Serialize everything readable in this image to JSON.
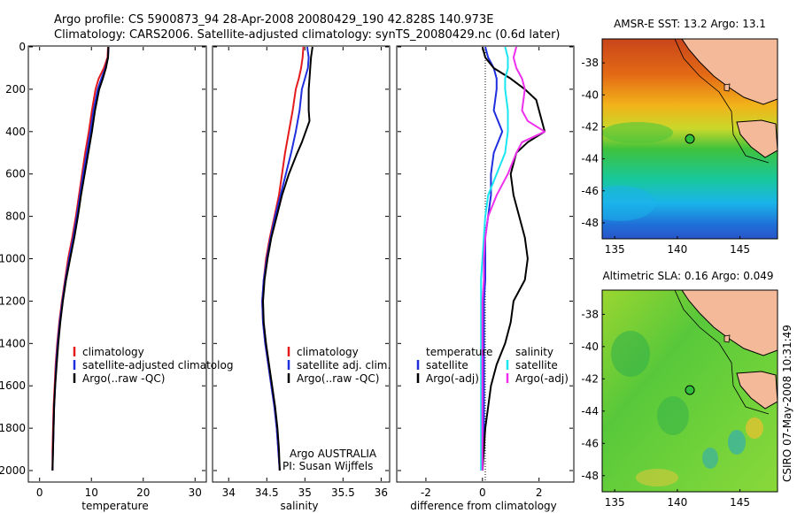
{
  "header": {
    "line1": "Argo profile: CS 5900873_94 28-Apr-2008 20080429_190 42.828S 140.973E",
    "line2": "Climatology: CARS2006. Satellite-adjusted climatology: synTS_20080429.nc (0.6d later)"
  },
  "colors": {
    "climatology": "#e41a1c",
    "satellite": "#1f2fe0",
    "argo": "#000000",
    "satellite_salinity": "#19e6f0",
    "argo_adj_salinity": "#ee2fee"
  },
  "chart_data": [
    {
      "id": "temperature",
      "type": "line",
      "xlabel": "temperature",
      "ylabel": "",
      "xlim": [
        -2,
        32
      ],
      "ylim": [
        2050,
        0
      ],
      "xticks": [
        0,
        10,
        20,
        30
      ],
      "yticks": [
        0,
        200,
        400,
        600,
        800,
        1000,
        1200,
        1400,
        1600,
        1800,
        2000
      ],
      "ytick_labels": [
        "0",
        "200",
        "400",
        "600",
        "800",
        "1000",
        "1200",
        "1400",
        "1600",
        "1800",
        "2000"
      ],
      "legend": {
        "entries": [
          "climatology",
          "satellite-adjusted climatolog",
          "Argo(..raw -QC)"
        ],
        "placement": "lower-center"
      },
      "series": [
        {
          "name": "climatology",
          "color": "#e41a1c",
          "y": [
            0,
            50,
            100,
            150,
            200,
            300,
            400,
            500,
            600,
            700,
            800,
            900,
            1000,
            1100,
            1200,
            1300,
            1400,
            1500,
            1600,
            1700,
            1800,
            1900,
            2000
          ],
          "x": [
            13.2,
            13.1,
            12.4,
            11.4,
            10.8,
            10.1,
            9.5,
            8.8,
            8.2,
            7.6,
            7.0,
            6.3,
            5.5,
            4.9,
            4.3,
            3.8,
            3.4,
            3.1,
            2.9,
            2.7,
            2.6,
            2.5,
            2.5
          ]
        },
        {
          "name": "satellite-adjusted climatology",
          "color": "#1f2fe0",
          "y": [
            0,
            50,
            100,
            150,
            200,
            300,
            400,
            500,
            600,
            700,
            800,
            900,
            1000,
            1100,
            1200,
            1300,
            1400,
            1500,
            1600,
            1700,
            1800,
            1900,
            2000
          ],
          "x": [
            13.3,
            13.2,
            12.7,
            11.9,
            11.2,
            10.4,
            9.8,
            9.1,
            8.4,
            7.8,
            7.2,
            6.5,
            5.7,
            5.0,
            4.4,
            3.9,
            3.5,
            3.2,
            3.0,
            2.8,
            2.7,
            2.6,
            2.5
          ]
        },
        {
          "name": "Argo(..raw -QC)",
          "color": "#000000",
          "y": [
            0,
            50,
            100,
            150,
            200,
            300,
            400,
            500,
            600,
            700,
            800,
            900,
            1000,
            1100,
            1200,
            1300,
            1400,
            1500,
            1600,
            1700,
            1800,
            1900,
            2000
          ],
          "x": [
            13.3,
            13.2,
            12.8,
            12.2,
            11.5,
            10.7,
            10.1,
            9.4,
            8.7,
            8.0,
            7.4,
            6.7,
            5.9,
            5.1,
            4.5,
            4.0,
            3.6,
            3.3,
            3.0,
            2.8,
            2.7,
            2.6,
            2.5
          ]
        }
      ]
    },
    {
      "id": "salinity",
      "type": "line",
      "xlabel": "salinity",
      "ylabel": "",
      "xlim": [
        33.8,
        36.1
      ],
      "ylim": [
        2050,
        0
      ],
      "xticks": [
        34,
        34.5,
        35,
        35.5,
        36
      ],
      "xtick_labels": [
        "34",
        "34.5",
        "35",
        "35.5",
        "36"
      ],
      "legend": {
        "entries": [
          "climatology",
          "satellite adj. clim.",
          "Argo(..raw -QC)"
        ],
        "placement": "lower-center"
      },
      "annotation": [
        "Argo AUSTRALIA",
        "PI: Susan Wijffels"
      ],
      "series": [
        {
          "name": "climatology",
          "color": "#e41a1c",
          "y": [
            0,
            50,
            100,
            150,
            200,
            300,
            400,
            500,
            600,
            700,
            800,
            900,
            1000,
            1100,
            1200,
            1300,
            1400,
            1500,
            1600,
            1700,
            1800,
            1900,
            2000
          ],
          "x": [
            34.98,
            34.97,
            34.95,
            34.92,
            34.88,
            34.84,
            34.79,
            34.74,
            34.7,
            34.66,
            34.6,
            34.54,
            34.49,
            34.46,
            34.44,
            34.45,
            34.48,
            34.52,
            34.56,
            34.6,
            34.63,
            34.65,
            34.67
          ]
        },
        {
          "name": "satellite adj. clim.",
          "color": "#1f2fe0",
          "y": [
            0,
            50,
            100,
            150,
            200,
            300,
            400,
            500,
            600,
            700,
            800,
            900,
            1000,
            1100,
            1200,
            1300,
            1400,
            1500,
            1600,
            1700,
            1800,
            1900,
            2000
          ],
          "x": [
            35.03,
            35.05,
            35.04,
            35.0,
            34.96,
            34.93,
            34.88,
            34.82,
            34.75,
            34.68,
            34.61,
            34.55,
            34.5,
            34.46,
            34.44,
            34.45,
            34.48,
            34.52,
            34.56,
            34.6,
            34.63,
            34.65,
            34.67
          ]
        },
        {
          "name": "Argo(..raw -QC)",
          "color": "#000000",
          "y": [
            0,
            50,
            100,
            150,
            200,
            300,
            350,
            400,
            450,
            500,
            600,
            700,
            800,
            900,
            1000,
            1100,
            1200,
            1300,
            1400,
            1500,
            1600,
            1700,
            1800,
            1900,
            2000
          ],
          "x": [
            35.1,
            35.08,
            35.07,
            35.06,
            35.05,
            35.05,
            35.06,
            35.01,
            34.96,
            34.9,
            34.79,
            34.7,
            34.63,
            34.56,
            34.51,
            34.47,
            34.45,
            34.46,
            34.49,
            34.53,
            34.57,
            34.61,
            34.64,
            34.66,
            34.67
          ]
        }
      ]
    },
    {
      "id": "difference",
      "type": "line",
      "xlabel": "difference from climatology",
      "ylabel": "",
      "xlim": [
        -3,
        3.2
      ],
      "ylim": [
        2050,
        0
      ],
      "xticks": [
        -2,
        0,
        2
      ],
      "xtick_labels": [
        "-2",
        "0",
        "2"
      ],
      "legend": {
        "columns": [
          {
            "heading": "temperature",
            "entries": [
              "satellite",
              "Argo(-adj)"
            ]
          },
          {
            "heading": "salinity",
            "entries": [
              "satellite",
              "Argo(-adj)"
            ]
          }
        ],
        "placement": "lower-center"
      },
      "series": [
        {
          "name": "temperature satellite",
          "color": "#1f2fe0",
          "y": [
            0,
            50,
            100,
            150,
            200,
            300,
            400,
            500,
            600,
            700,
            800,
            900,
            1000,
            1100,
            1200,
            1300,
            1400,
            1500,
            1600,
            1700,
            1800,
            1900,
            2000
          ],
          "x": [
            0.1,
            0.2,
            0.4,
            0.5,
            0.5,
            0.4,
            0.7,
            0.4,
            0.3,
            0.3,
            0.2,
            0.1,
            0.1,
            0.1,
            0.05,
            0.05,
            0.05,
            0.05,
            0.05,
            0.05,
            0.05,
            0.05,
            0.0
          ]
        },
        {
          "name": "temperature Argo(-adj)",
          "color": "#000000",
          "y": [
            0,
            50,
            100,
            150,
            200,
            250,
            300,
            350,
            400,
            450,
            500,
            600,
            700,
            800,
            900,
            1000,
            1100,
            1200,
            1300,
            1400,
            1500,
            1600,
            1700,
            1800,
            1900,
            2000
          ],
          "x": [
            0.0,
            0.1,
            0.4,
            1.0,
            1.5,
            1.9,
            2.0,
            2.1,
            2.2,
            1.6,
            1.2,
            1.0,
            1.1,
            1.3,
            1.5,
            1.6,
            1.5,
            1.1,
            1.0,
            0.8,
            0.5,
            0.3,
            0.2,
            0.1,
            0.05,
            0.0
          ]
        },
        {
          "name": "salinity satellite",
          "color": "#19e6f0",
          "y": [
            0,
            50,
            100,
            150,
            200,
            300,
            400,
            500,
            600,
            700,
            800,
            900,
            1000,
            1100,
            1200,
            1300,
            1400,
            1500,
            1600,
            1700,
            1800,
            1900,
            2000
          ],
          "x": [
            0.8,
            0.9,
            0.9,
            0.8,
            0.8,
            0.9,
            0.9,
            0.8,
            0.5,
            0.2,
            0.1,
            0.05,
            0.0,
            -0.05,
            -0.05,
            -0.05,
            -0.05,
            -0.05,
            -0.05,
            -0.05,
            -0.05,
            -0.05,
            -0.05
          ]
        },
        {
          "name": "salinity Argo(-adj)",
          "color": "#ee2fee",
          "y": [
            0,
            50,
            100,
            150,
            200,
            300,
            350,
            400,
            450,
            500,
            600,
            700,
            800,
            900,
            1000,
            1100,
            1200,
            1300,
            1400,
            1500,
            1600,
            1700,
            1800,
            1900,
            2000
          ],
          "x": [
            1.2,
            1.1,
            1.2,
            1.4,
            1.5,
            1.4,
            1.6,
            2.2,
            1.4,
            1.2,
            0.9,
            0.5,
            0.2,
            0.1,
            0.05,
            0.05,
            0.0,
            0.0,
            0.0,
            0.0,
            0.0,
            0.0,
            0.0,
            0.0,
            0.0
          ]
        }
      ]
    }
  ],
  "maps": [
    {
      "id": "sst",
      "title": "AMSR-E SST: 13.2 Argo: 13.1",
      "yticks": [
        -38,
        -40,
        -42,
        -44,
        -46,
        -48
      ],
      "ytick_labels": [
        "-38",
        "-40",
        "-42",
        "-44",
        "-46",
        "-48"
      ],
      "xticks": [
        135,
        140,
        145
      ],
      "xtick_labels": [
        "135",
        "140",
        "145"
      ],
      "xlim": [
        134,
        148
      ],
      "ylim": [
        -49,
        -36.5
      ],
      "float": {
        "lon": 140.973,
        "lat": -42.828
      }
    },
    {
      "id": "sla",
      "title": "Altimetric SLA: 0.16 Argo: 0.049",
      "yticks": [
        -38,
        -40,
        -42,
        -44,
        -46,
        -48
      ],
      "ytick_labels": [
        "-38",
        "-40",
        "-42",
        "-44",
        "-46",
        "-48"
      ],
      "xticks": [
        135,
        140,
        145
      ],
      "xtick_labels": [
        "135",
        "140",
        "145"
      ],
      "xlim": [
        134,
        148
      ],
      "ylim": [
        -49,
        -36.5
      ],
      "float": {
        "lon": 140.973,
        "lat": -42.828
      }
    }
  ],
  "footer_stamp": "CSIRO 07-May-2008 10:31:49"
}
